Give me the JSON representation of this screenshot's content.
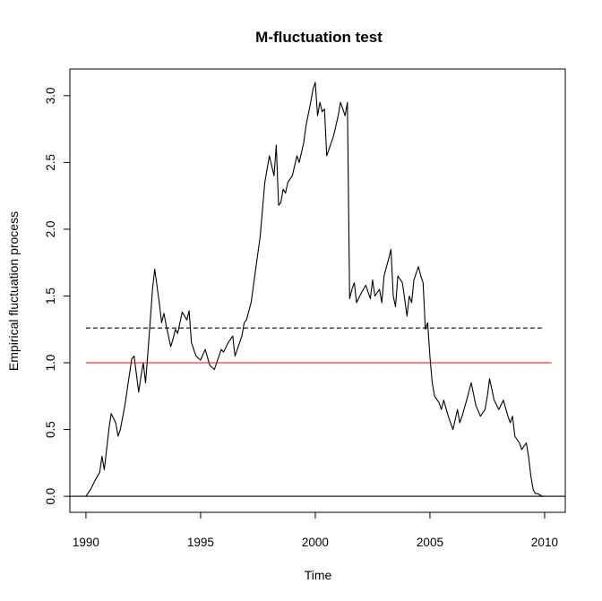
{
  "chart_data": {
    "type": "line",
    "title": "M-fluctuation test",
    "xlabel": "Time",
    "ylabel": "Empirical fluctuation process",
    "xlim": [
      1989.3,
      2010.9
    ],
    "ylim": [
      -0.12,
      3.2
    ],
    "x_ticks": [
      1990,
      1995,
      2000,
      2005,
      2010
    ],
    "y_ticks": [
      0.0,
      0.5,
      1.0,
      1.5,
      2.0,
      2.5,
      3.0
    ],
    "x_tick_labels": [
      "1990",
      "1995",
      "2000",
      "2005",
      "2010"
    ],
    "y_tick_labels": [
      "0.0",
      "0.5",
      "1.0",
      "1.5",
      "2.0",
      "2.5",
      "3.0"
    ],
    "grid": false,
    "legend": "none",
    "series": [
      {
        "color": "#000000",
        "dash": "solid",
        "x": [
          1990.0,
          1990.2,
          1990.4,
          1990.6,
          1990.7,
          1990.8,
          1990.9,
          1991.0,
          1991.1,
          1991.3,
          1991.4,
          1991.5,
          1991.7,
          1991.8,
          1992.0,
          1992.1,
          1992.3,
          1992.4,
          1992.5,
          1992.6,
          1992.8,
          1992.9,
          1993.0,
          1993.2,
          1993.3,
          1993.4,
          1993.5,
          1993.7,
          1993.8,
          1993.9,
          1994.0,
          1994.2,
          1994.4,
          1994.5,
          1994.6,
          1994.8,
          1995.0,
          1995.2,
          1995.4,
          1995.6,
          1995.8,
          1995.9,
          1996.0,
          1996.2,
          1996.4,
          1996.5,
          1996.6,
          1996.8,
          1996.9,
          1997.0,
          1997.2,
          1997.4,
          1997.6,
          1997.8,
          1998.0,
          1998.2,
          1998.3,
          1998.4,
          1998.5,
          1998.6,
          1998.7,
          1998.8,
          1999.0,
          1999.2,
          1999.3,
          1999.5,
          1999.6,
          1999.8,
          1999.9,
          2000.0,
          2000.1,
          2000.2,
          2000.3,
          2000.4,
          2000.5,
          2000.6,
          2000.8,
          2001.0,
          2001.1,
          2001.2,
          2001.3,
          2001.4,
          2001.5,
          2001.6,
          2001.7,
          2001.8,
          2002.0,
          2002.2,
          2002.4,
          2002.5,
          2002.6,
          2002.8,
          2002.9,
          2003.0,
          2003.2,
          2003.3,
          2003.4,
          2003.5,
          2003.6,
          2003.8,
          2004.0,
          2004.1,
          2004.2,
          2004.3,
          2004.5,
          2004.6,
          2004.7,
          2004.8,
          2004.9,
          2005.0,
          2005.1,
          2005.2,
          2005.4,
          2005.5,
          2005.6,
          2005.8,
          2005.9,
          2006.0,
          2006.2,
          2006.3,
          2006.4,
          2006.6,
          2006.8,
          2007.0,
          2007.2,
          2007.4,
          2007.5,
          2007.6,
          2007.8,
          2008.0,
          2008.2,
          2008.4,
          2008.5,
          2008.6,
          2008.7,
          2008.9,
          2009.0,
          2009.2,
          2009.3,
          2009.4,
          2009.5,
          2009.6,
          2009.7,
          2009.8,
          2009.9,
          2010.0
        ],
        "y": [
          0.0,
          0.05,
          0.12,
          0.18,
          0.3,
          0.2,
          0.35,
          0.5,
          0.62,
          0.55,
          0.45,
          0.5,
          0.68,
          0.8,
          1.03,
          1.05,
          0.78,
          0.9,
          1.0,
          0.85,
          1.3,
          1.55,
          1.7,
          1.45,
          1.3,
          1.37,
          1.28,
          1.12,
          1.18,
          1.25,
          1.22,
          1.38,
          1.32,
          1.39,
          1.15,
          1.05,
          1.02,
          1.1,
          0.98,
          0.95,
          1.05,
          1.1,
          1.08,
          1.15,
          1.2,
          1.05,
          1.1,
          1.2,
          1.3,
          1.32,
          1.45,
          1.7,
          1.95,
          2.35,
          2.55,
          2.4,
          2.63,
          2.18,
          2.2,
          2.3,
          2.27,
          2.35,
          2.4,
          2.55,
          2.5,
          2.65,
          2.78,
          2.95,
          3.05,
          3.1,
          2.85,
          2.95,
          2.88,
          2.9,
          2.55,
          2.6,
          2.7,
          2.85,
          2.95,
          2.9,
          2.85,
          2.95,
          1.48,
          1.55,
          1.6,
          1.45,
          1.52,
          1.58,
          1.48,
          1.62,
          1.5,
          1.55,
          1.45,
          1.65,
          1.78,
          1.85,
          1.5,
          1.42,
          1.65,
          1.6,
          1.35,
          1.5,
          1.45,
          1.62,
          1.72,
          1.65,
          1.6,
          1.25,
          1.3,
          1.05,
          0.85,
          0.75,
          0.7,
          0.65,
          0.72,
          0.6,
          0.55,
          0.5,
          0.65,
          0.55,
          0.6,
          0.72,
          0.85,
          0.68,
          0.6,
          0.65,
          0.75,
          0.88,
          0.72,
          0.65,
          0.72,
          0.6,
          0.55,
          0.6,
          0.45,
          0.4,
          0.35,
          0.4,
          0.3,
          0.15,
          0.05,
          0.02,
          0.02,
          0.01,
          0.0,
          0.0
        ]
      },
      {
        "color": "#000000",
        "dash": "dashed",
        "x": [
          1990.0,
          2010.0
        ],
        "y": [
          1.26,
          1.26
        ]
      },
      {
        "color": "#ff0000",
        "dash": "solid",
        "x": [
          1990.0,
          2010.3
        ],
        "y": [
          1.0,
          1.0
        ]
      },
      {
        "color": "#000000",
        "dash": "solid",
        "x": [
          1989.3,
          2010.9
        ],
        "y": [
          0.0,
          0.0
        ]
      }
    ]
  }
}
